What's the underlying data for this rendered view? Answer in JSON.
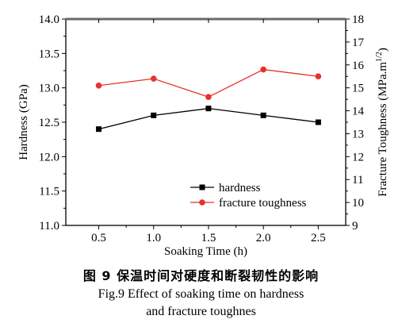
{
  "chart_data": {
    "type": "line",
    "x": [
      0.5,
      1.0,
      1.5,
      2.0,
      2.5
    ],
    "x_tick_labels": [
      "0.5",
      "1.0",
      "1.5",
      "2.0",
      "2.5"
    ],
    "xlim": [
      0.2,
      2.75
    ],
    "xlabel": "Soaking Time (h)",
    "ylabel_left": "Hardness (GPa)",
    "ylim_left": [
      11.0,
      14.0
    ],
    "y_left_tick_labels": [
      "11.0",
      "11.5",
      "12.0",
      "12.5",
      "13.0",
      "13.5",
      "14.0"
    ],
    "ylabel_right": "Fracture Toughness (MPa.m",
    "ylabel_right_sup": "1/2",
    "ylabel_right_end": ")",
    "ylim_right": [
      9,
      18
    ],
    "y_right_tick_labels": [
      "9",
      "10",
      "11",
      "12",
      "13",
      "14",
      "15",
      "16",
      "17",
      "18"
    ],
    "legend_position": "lower-right",
    "series": [
      {
        "name": "hardness",
        "axis": "left",
        "color": "#000000",
        "marker": "square",
        "values": [
          12.4,
          12.6,
          12.7,
          12.6,
          12.5
        ]
      },
      {
        "name": "fracture toughness",
        "axis": "right",
        "color": "#e8312a",
        "marker": "circle",
        "values": [
          15.1,
          15.4,
          14.6,
          15.8,
          15.5
        ]
      }
    ]
  },
  "caption": {
    "chinese": "图 9   保温时间对硬度和断裂韧性的影响",
    "english_line1": "Fig.9 Effect of soaking time on hardness",
    "english_line2": "and fracture toughnes"
  }
}
